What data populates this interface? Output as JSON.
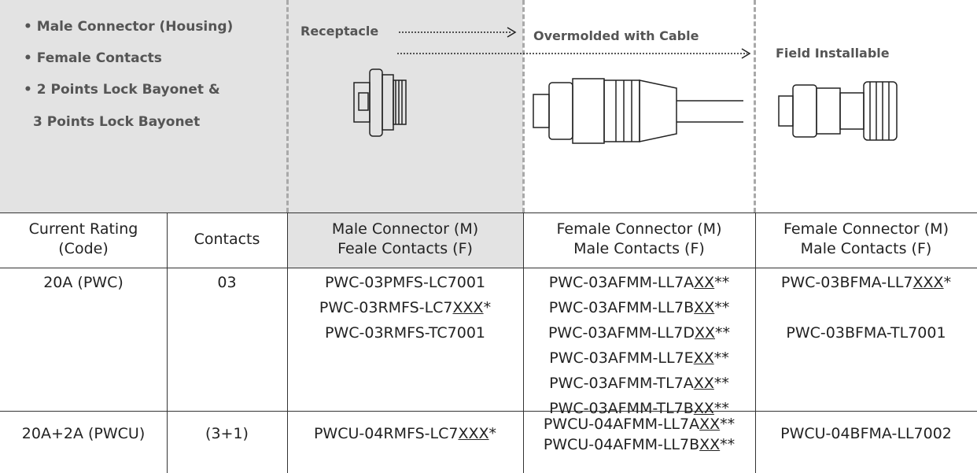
{
  "top": {
    "features": [
      "Male Connector (Housing)",
      "Female Contacts",
      "2 Points Lock Bayonet &",
      "3 Points Lock Bayonet"
    ],
    "columns": [
      "Receptacle",
      "Overmolded with Cable",
      "Field Installable"
    ]
  },
  "table": {
    "header": [
      [
        "Current Rating",
        "(Code)"
      ],
      [
        "Contacts"
      ],
      [
        "Male Connector (M)",
        "Feale Contacts (F)"
      ],
      [
        "Female Connector (M)",
        "Male Contacts (F)"
      ],
      [
        "Female Connector (M)",
        "Male Contacts (F)"
      ]
    ],
    "rows": [
      [
        [
          "20A (PWC)"
        ],
        [
          "03"
        ],
        [
          "PWC-03PMFS-LC7001",
          {
            "text": "PWC-03RMFS-LC7",
            "underline": "XXX",
            "suffix": "*"
          },
          "PWC-03RMFS-TC7001"
        ],
        [
          {
            "text": "PWC-03AFMM-LL7A",
            "underline": "XX",
            "suffix": "**"
          },
          {
            "text": "PWC-03AFMM-LL7B",
            "underline": "XX",
            "suffix": "**"
          },
          {
            "text": "PWC-03AFMM-LL7D",
            "underline": "XX",
            "suffix": "**"
          },
          {
            "text": "PWC-03AFMM-LL7E",
            "underline": "XX",
            "suffix": "**"
          },
          {
            "text": "PWC-03AFMM-TL7A",
            "underline": "XX",
            "suffix": "**"
          },
          {
            "text": "PWC-03AFMM-TL7B",
            "underline": "XX",
            "suffix": "**"
          }
        ],
        [
          {
            "text": "PWC-03BFMA-LL7",
            "underline": "XXX",
            "suffix": "*"
          },
          "PWC-03BFMA-TL7001"
        ]
      ],
      [
        [
          "20A+2A (PWCU)"
        ],
        [
          "(3+1)"
        ],
        [
          {
            "text": "PWCU-04RMFS-LC7",
            "underline": "XXX",
            "suffix": "*"
          }
        ],
        [
          {
            "text": "PWCU-04AFMM-LL7A",
            "underline": "XX",
            "suffix": "**"
          },
          {
            "text": "PWCU-04AFMM-LL7B",
            "underline": "XX",
            "suffix": "**"
          }
        ],
        [
          "PWCU-04BFMA-LL7002"
        ]
      ]
    ]
  }
}
